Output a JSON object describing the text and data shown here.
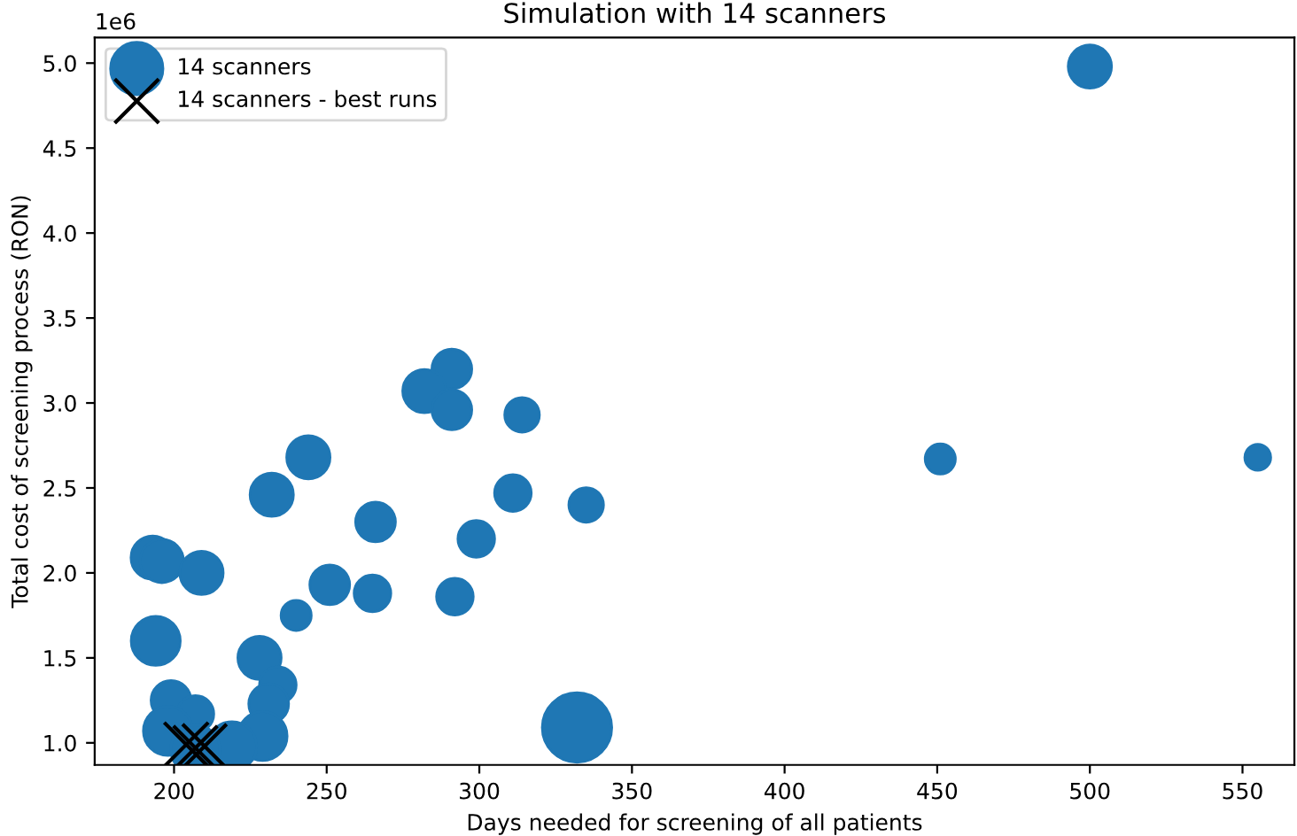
{
  "chart_data": {
    "type": "bubble",
    "title": "Simulation with 14 scanners",
    "xlabel": "Days needed for screening of all patients",
    "ylabel": "Total cost of screening process (RON)",
    "annotations": [
      "1e6"
    ],
    "xlim": [
      174,
      567
    ],
    "ylim": [
      0.87,
      5.15
    ],
    "xticks": [
      200,
      250,
      300,
      350,
      400,
      450,
      500,
      550
    ],
    "yticks": [
      {
        "value": 1.0,
        "label": "1.0"
      },
      {
        "value": 1.5,
        "label": "1.5"
      },
      {
        "value": 2.0,
        "label": "2.0"
      },
      {
        "value": 2.5,
        "label": "2.5"
      },
      {
        "value": 3.0,
        "label": "3.0"
      },
      {
        "value": 3.5,
        "label": "3.5"
      },
      {
        "value": 4.0,
        "label": "4.0"
      },
      {
        "value": 4.5,
        "label": "4.5"
      },
      {
        "value": 5.0,
        "label": "5.0"
      }
    ],
    "grid": false,
    "legend": "top left",
    "series": [
      {
        "name": "14 scanners",
        "color": "#1f77b4",
        "marker": "circle",
        "x": [
          500,
          451,
          555,
          291,
          282,
          291,
          314,
          244,
          232,
          311,
          335,
          266,
          299,
          193,
          196,
          209,
          251,
          265,
          240,
          292,
          194,
          228,
          234,
          199,
          231,
          207,
          198,
          229,
          332,
          219,
          207
        ],
        "values": [
          4.98,
          2.67,
          2.68,
          3.2,
          3.07,
          2.96,
          2.93,
          2.68,
          2.46,
          2.47,
          2.4,
          2.3,
          2.2,
          2.09,
          2.07,
          2.0,
          1.93,
          1.88,
          1.75,
          1.86,
          1.6,
          1.5,
          1.34,
          1.25,
          1.23,
          1.17,
          1.07,
          1.04,
          1.09,
          0.98,
          0.96
        ],
        "sizes": [
          0.39,
          0.19,
          0.14,
          0.33,
          0.39,
          0.33,
          0.25,
          0.39,
          0.39,
          0.28,
          0.25,
          0.33,
          0.28,
          0.39,
          0.39,
          0.39,
          0.33,
          0.28,
          0.19,
          0.28,
          0.5,
          0.39,
          0.28,
          0.33,
          0.33,
          0.28,
          0.5,
          0.5,
          1,
          0.5,
          0.5
        ]
      },
      {
        "name": "14 scanners - best runs",
        "type": "scatter",
        "color": "#000000",
        "marker": "cross",
        "x": [
          204,
          207,
          210
        ],
        "values": [
          0.99,
          0.97,
          0.98
        ]
      }
    ]
  }
}
